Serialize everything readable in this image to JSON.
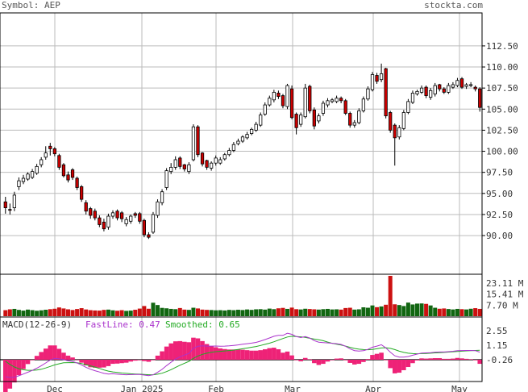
{
  "header": {
    "symbol_label": "Symbol: AEP",
    "brand": "stockta.com"
  },
  "macd": {
    "title": "MACD(12-26-9)",
    "fastline_label": "FastLine: 0.47",
    "smoothed_label": "Smoothed: 0.65",
    "ticks": [
      "2.55",
      "1.15",
      "-0.26"
    ],
    "fast_color": "#aa33cc",
    "smoothed_color": "#22aa22",
    "hist_color": "#ee2277"
  },
  "chart_data": {
    "type": "candlestick",
    "price_ticks": [
      "112.50",
      "110.00",
      "107.50",
      "105.00",
      "102.50",
      "100.00",
      "97.50",
      "95.00",
      "92.50",
      "90.00"
    ],
    "price_tick_values": [
      112.5,
      110,
      107.5,
      105,
      102.5,
      100,
      97.5,
      95,
      92.5,
      90
    ],
    "volume_ticks": [
      "23.11 M",
      "15.41 M",
      "7.70 M"
    ],
    "volume_tick_values": [
      23.11,
      15.41,
      7.7
    ],
    "x_labels": [
      "Dec",
      "Jan 2025",
      "Feb",
      "Mar",
      "Apr",
      "May"
    ],
    "ylim": [
      85.5,
      116.5
    ],
    "up_color": "#ffffff",
    "down_color": "#cc0000",
    "volume_up_color": "#116611",
    "volume_down_color": "#cc1111",
    "close": [
      93.3,
      93.0,
      94.8,
      96.5,
      96.8,
      97.3,
      97.6,
      98.2,
      99.0,
      99.8,
      100.3,
      99.7,
      98.1,
      97.1,
      96.6,
      96.9,
      95.7,
      94.3,
      92.9,
      92.4,
      92.1,
      91.3,
      90.8,
      92.3,
      92.7,
      92.1,
      92.0,
      91.9,
      92.3,
      92.4,
      91.7,
      90.1,
      89.8,
      92.5,
      94.0,
      95.2,
      97.7,
      98.1,
      99.0,
      98.2,
      97.9,
      98.4,
      102.9,
      99.6,
      98.5,
      98.1,
      98.6,
      99.2,
      99.0,
      99.6,
      100.1,
      100.8,
      101.2,
      101.7,
      102.0,
      102.6,
      103.2,
      104.3,
      105.5,
      106.3,
      107.0,
      106.5,
      105.4,
      107.8,
      104.0,
      102.8,
      104.3,
      107.5,
      104.8,
      103.0,
      104.2,
      105.7,
      106.0,
      106.1,
      106.3,
      106.0,
      104.5,
      103.1,
      103.4,
      104.8,
      106.2,
      107.4,
      109.1,
      108.3,
      109.2,
      104.2,
      102.5,
      101.6,
      102.8,
      104.6,
      105.9,
      106.9,
      107.1,
      107.5,
      106.6,
      107.2,
      107.8,
      107.4,
      107.0,
      107.8,
      107.9,
      108.4,
      107.6,
      107.9,
      107.9,
      107.4,
      105.2
    ],
    "open": [
      94.0,
      93.1,
      93.3,
      95.8,
      96.4,
      96.7,
      96.9,
      97.4,
      98.4,
      99.3,
      100.6,
      100.3,
      99.5,
      98.4,
      97.2,
      97.8,
      96.8,
      95.8,
      93.9,
      93.2,
      92.9,
      92.1,
      91.6,
      91.0,
      92.3,
      92.9,
      92.7,
      91.4,
      91.7,
      92.6,
      92.6,
      91.8,
      90.1,
      90.4,
      92.4,
      93.9,
      95.7,
      97.6,
      98.1,
      99.2,
      98.4,
      97.6,
      99.0,
      102.9,
      99.8,
      98.9,
      98.0,
      98.6,
      98.6,
      99.1,
      99.6,
      100.1,
      100.9,
      101.2,
      101.6,
      102.1,
      102.5,
      103.1,
      104.4,
      105.5,
      106.1,
      106.9,
      106.6,
      105.3,
      107.4,
      104.4,
      103.2,
      104.1,
      107.7,
      104.9,
      103.6,
      104.5,
      105.5,
      105.9,
      105.9,
      106.3,
      106.0,
      104.5,
      103.1,
      103.4,
      104.8,
      106.2,
      107.3,
      109.0,
      108.5,
      109.8,
      104.6,
      103.1,
      101.7,
      102.7,
      104.6,
      105.8,
      106.8,
      107.0,
      107.6,
      106.4,
      106.8,
      107.9,
      107.4,
      107.0,
      107.6,
      107.8,
      108.6,
      107.7,
      107.9,
      107.6,
      107.4
    ],
    "high": [
      94.6,
      93.8,
      95.2,
      96.9,
      97.2,
      97.5,
      97.9,
      98.5,
      99.3,
      100.6,
      101.0,
      100.5,
      99.7,
      98.6,
      97.6,
      98.0,
      97.0,
      96.0,
      94.2,
      93.4,
      93.2,
      92.4,
      92.0,
      92.6,
      93.0,
      93.1,
      92.9,
      92.2,
      92.5,
      92.8,
      92.8,
      92.0,
      90.4,
      92.8,
      94.3,
      95.5,
      98.0,
      98.6,
      99.4,
      99.4,
      98.5,
      98.7,
      103.2,
      103.1,
      99.9,
      99.0,
      98.8,
      99.5,
      99.3,
      99.8,
      100.4,
      101.1,
      101.5,
      101.9,
      102.3,
      102.8,
      103.5,
      104.6,
      105.8,
      106.6,
      107.3,
      107.2,
      106.8,
      108.0,
      107.8,
      104.6,
      104.6,
      108.0,
      107.9,
      105.2,
      104.5,
      106.0,
      106.3,
      106.3,
      106.6,
      106.5,
      106.2,
      104.7,
      103.7,
      105.1,
      106.5,
      107.7,
      109.4,
      109.3,
      110.4,
      109.9,
      104.8,
      103.3,
      103.1,
      104.9,
      106.2,
      107.2,
      107.3,
      107.8,
      107.8,
      107.5,
      108.1,
      108.0,
      107.6,
      108.1,
      108.2,
      108.7,
      108.8,
      108.1,
      108.2,
      107.8,
      107.6
    ],
    "low": [
      92.6,
      92.5,
      92.9,
      95.4,
      96.1,
      96.5,
      96.7,
      97.2,
      98.1,
      99.0,
      99.5,
      99.4,
      97.8,
      96.9,
      96.3,
      96.6,
      95.4,
      94.0,
      92.5,
      92.0,
      91.8,
      91.0,
      90.5,
      90.7,
      92.0,
      91.8,
      91.6,
      91.1,
      91.4,
      92.1,
      91.4,
      89.8,
      89.6,
      90.2,
      92.1,
      93.6,
      95.4,
      97.3,
      97.8,
      97.9,
      97.6,
      97.3,
      98.8,
      99.3,
      98.2,
      97.8,
      97.7,
      98.3,
      98.4,
      98.9,
      99.4,
      99.9,
      100.7,
      101.0,
      101.4,
      101.9,
      102.3,
      102.9,
      104.2,
      105.3,
      105.8,
      106.2,
      105.1,
      105.0,
      103.8,
      102.0,
      102.9,
      103.9,
      104.5,
      102.6,
      103.3,
      104.2,
      105.2,
      105.7,
      105.7,
      105.7,
      104.3,
      102.8,
      102.8,
      103.2,
      104.6,
      106.0,
      107.1,
      108.0,
      108.2,
      103.9,
      102.2,
      98.3,
      101.4,
      102.5,
      104.4,
      105.6,
      106.6,
      106.8,
      106.3,
      106.1,
      106.5,
      107.1,
      106.8,
      106.8,
      107.4,
      107.6,
      107.4,
      107.4,
      107.6,
      107.1,
      104.7
    ],
    "volume": [
      4.2,
      4.8,
      5.1,
      4.4,
      3.9,
      4.6,
      4.2,
      3.8,
      4.1,
      4.5,
      4.9,
      5.2,
      6.1,
      5.4,
      4.8,
      4.3,
      5.0,
      5.6,
      4.7,
      4.2,
      4.0,
      3.9,
      4.4,
      4.6,
      4.1,
      3.8,
      4.2,
      3.7,
      3.9,
      4.5,
      5.3,
      7.1,
      5.2,
      9.4,
      7.8,
      5.8,
      5.5,
      5.1,
      4.9,
      5.7,
      4.6,
      4.4,
      5.9,
      5.4,
      4.6,
      4.4,
      4.3,
      4.1,
      4.2,
      4.0,
      4.4,
      4.2,
      4.5,
      4.3,
      4.7,
      4.4,
      4.8,
      4.9,
      4.6,
      5.3,
      4.9,
      5.5,
      5.8,
      5.1,
      6.0,
      4.9,
      4.7,
      5.2,
      5.0,
      4.8,
      4.6,
      4.9,
      5.1,
      4.7,
      4.8,
      4.6,
      5.7,
      5.9,
      4.6,
      4.8,
      6.2,
      5.9,
      7.5,
      6.3,
      6.8,
      8.0,
      30.5,
      8.3,
      7.8,
      7.1,
      9.5,
      8.2,
      8.8,
      8.9,
      8.6,
      7.5,
      5.9,
      5.2,
      5.4,
      5.0,
      4.7,
      5.1,
      4.9,
      4.7,
      5.2,
      5.6,
      5.1
    ],
    "macd_fast": [
      -1.9,
      -1.98,
      -1.96,
      -1.81,
      -1.64,
      -1.47,
      -1.29,
      -1.08,
      -0.84,
      -0.57,
      -0.28,
      -0.13,
      -0.17,
      -0.25,
      -0.36,
      -0.43,
      -0.57,
      -0.76,
      -0.99,
      -1.18,
      -1.32,
      -1.45,
      -1.58,
      -1.64,
      -1.62,
      -1.66,
      -1.7,
      -1.71,
      -1.7,
      -1.68,
      -1.68,
      -1.74,
      -1.8,
      -1.72,
      -1.48,
      -1.19,
      -0.83,
      -0.5,
      -0.2,
      0.03,
      0.19,
      0.35,
      0.84,
      1.04,
      1.08,
      1.06,
      1.06,
      1.07,
      1.05,
      1.06,
      1.08,
      1.13,
      1.18,
      1.24,
      1.29,
      1.35,
      1.42,
      1.54,
      1.69,
      1.85,
      2.01,
      2.1,
      2.1,
      2.3,
      2.2,
      1.98,
      1.89,
      1.98,
      1.84,
      1.59,
      1.44,
      1.4,
      1.37,
      1.33,
      1.29,
      1.22,
      1.04,
      0.8,
      0.62,
      0.58,
      0.62,
      0.74,
      0.95,
      1.06,
      1.19,
      0.89,
      0.47,
      0.12,
      -0.0,
      -0.01,
      0.05,
      0.18,
      0.29,
      0.39,
      0.4,
      0.43,
      0.47,
      0.49,
      0.49,
      0.52,
      0.56,
      0.62,
      0.63,
      0.64,
      0.64,
      0.62,
      0.47
    ],
    "macd_smoothed": [
      -0.4,
      -0.71,
      -0.96,
      -1.13,
      -1.23,
      -1.28,
      -1.28,
      -1.25,
      -1.18,
      -1.06,
      -0.91,
      -0.76,
      -0.65,
      -0.56,
      -0.54,
      -0.53,
      -0.56,
      -0.63,
      -0.74,
      -0.85,
      -0.97,
      -1.1,
      -1.24,
      -1.36,
      -1.44,
      -1.49,
      -1.55,
      -1.58,
      -1.62,
      -1.64,
      -1.66,
      -1.68,
      -1.71,
      -1.71,
      -1.66,
      -1.56,
      -1.41,
      -1.22,
      -1.01,
      -0.79,
      -0.6,
      -0.42,
      -0.13,
      0.1,
      0.26,
      0.37,
      0.46,
      0.52,
      0.55,
      0.59,
      0.63,
      0.68,
      0.73,
      0.8,
      0.87,
      0.95,
      1.02,
      1.12,
      1.23,
      1.34,
      1.48,
      1.64,
      1.79,
      1.94,
      2.01,
      1.99,
      1.96,
      1.9,
      1.82,
      1.74,
      1.67,
      1.58,
      1.45,
      1.33,
      1.24,
      1.16,
      1.06,
      0.94,
      0.83,
      0.76,
      0.72,
      0.71,
      0.74,
      0.8,
      0.88,
      0.9,
      0.84,
      0.72,
      0.57,
      0.45,
      0.37,
      0.33,
      0.32,
      0.33,
      0.35,
      0.37,
      0.4,
      0.42,
      0.45,
      0.48,
      0.51,
      0.54,
      0.57,
      0.6,
      0.62,
      0.64,
      0.65
    ]
  }
}
